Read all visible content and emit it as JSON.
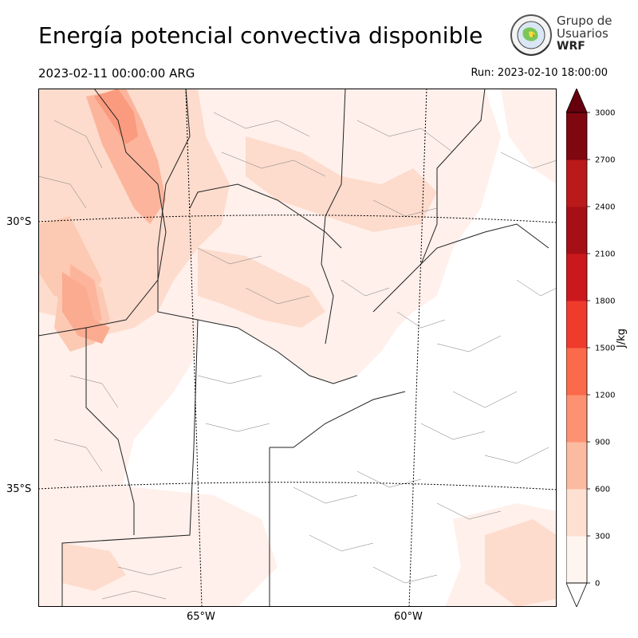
{
  "title": "Energía potencial convectiva disponible",
  "valid_time": "2023-02-11 00:00:00 ARG",
  "run_label": "Run: 2023-02-10 18:00:00",
  "logo": {
    "line1": "Grupo de",
    "line2": "Usuarios",
    "line3": "WRF",
    "icon": "globe-seal-icon"
  },
  "map": {
    "lat_labels": [
      "30°S",
      "35°S"
    ],
    "lon_labels": [
      "65°W",
      "60°W"
    ]
  },
  "colorbar": {
    "unit": "J/kg",
    "ticks": [
      "0",
      "300",
      "600",
      "900",
      "1200",
      "1500",
      "1800",
      "2100",
      "2400",
      "2700",
      "3000"
    ],
    "colors": [
      "#fff5f0",
      "#fee0d2",
      "#fcbba1",
      "#fc9272",
      "#fb6a4a",
      "#ef3b2c",
      "#cb181d",
      "#a50f15",
      "#ba1a1a",
      "#8f0b10",
      "#67000d"
    ],
    "over_color": "#67000d",
    "under_color": "#ffffff"
  }
}
